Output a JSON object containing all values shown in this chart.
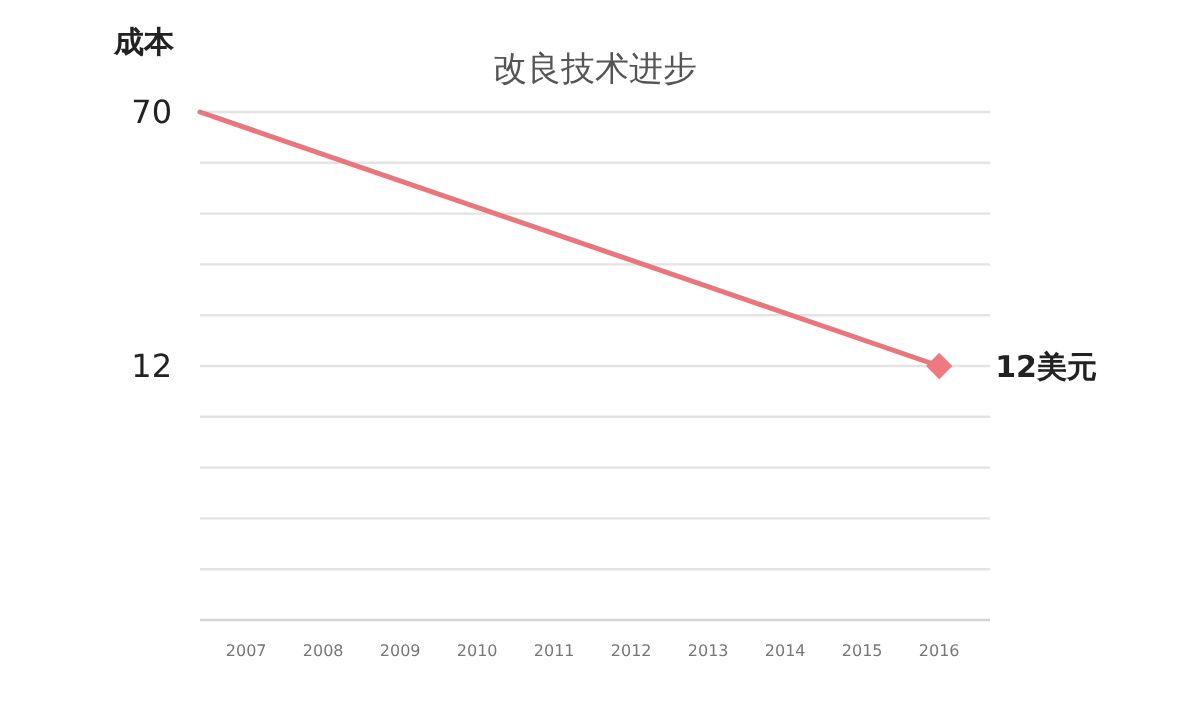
{
  "chart_data": {
    "type": "line",
    "title": "改良技术进步",
    "ylabel": "成本",
    "xlim": [
      2006.4,
      2016.66
    ],
    "xticks": [
      2007,
      2008,
      2009,
      2010,
      2011,
      2012,
      2013,
      2014,
      2015,
      2016
    ],
    "ylim": [
      -46,
      70
    ],
    "yticks": [
      70,
      {
        "value": 58.4,
        "label": null
      },
      {
        "value": 46.8,
        "label": null
      },
      {
        "value": 35.2,
        "label": null
      },
      {
        "value": 23.6,
        "label": null
      },
      12,
      {
        "value": 0.4,
        "label": null
      },
      {
        "value": -11.2,
        "label": null
      },
      {
        "value": -22.8,
        "label": null
      },
      {
        "value": -34.4,
        "label": null
      }
    ],
    "grid": "y",
    "x": [
      2006.4,
      2016
    ],
    "series": [
      {
        "color": "#e8767c",
        "values": [
          70,
          12
        ],
        "marker": "none"
      },
      {
        "type": "scatter",
        "color": "#ee7a80",
        "x": [
          2016
        ],
        "values": [
          12
        ],
        "marker": "diamond"
      }
    ],
    "annotations": [
      {
        "text": "12美元",
        "x": 2016,
        "y": 12
      }
    ]
  }
}
